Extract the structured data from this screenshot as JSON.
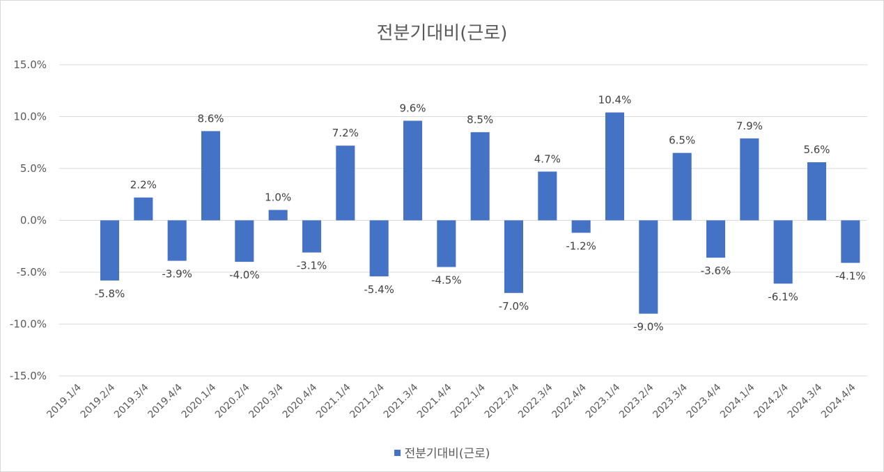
{
  "colors": {
    "bar": "#4472C4"
  },
  "chart_data": {
    "type": "bar",
    "title": "전분기대비(근로)",
    "categories": [
      "2019.1/4",
      "2019.2/4",
      "2019.3/4",
      "2019.4/4",
      "2020.1/4",
      "2020.2/4",
      "2020.3/4",
      "2020.4/4",
      "2021.1/4",
      "2021.2/4",
      "2021.3/4",
      "2021.4/4",
      "2022.1/4",
      "2022.2/4",
      "2022.3/4",
      "2022.4/4",
      "2023.1/4",
      "2023.2/4",
      "2023.3/4",
      "2023.4/4",
      "2024.1/4",
      "2024.2/4",
      "2024.3/4",
      "2024.4/4"
    ],
    "series": [
      {
        "name": "전분기대비(근로)",
        "values": [
          null,
          -5.8,
          2.2,
          -3.9,
          8.6,
          -4.0,
          1.0,
          -3.1,
          7.2,
          -5.4,
          9.6,
          -4.5,
          8.5,
          -7.0,
          4.7,
          -1.2,
          10.4,
          -9.0,
          6.5,
          -3.6,
          7.9,
          -6.1,
          5.6,
          -4.1
        ],
        "labels": [
          "",
          "-5.8%",
          "2.2%",
          "-3.9%",
          "8.6%",
          "-4.0%",
          "1.0%",
          "-3.1%",
          "7.2%",
          "-5.4%",
          "9.6%",
          "-4.5%",
          "8.5%",
          "-7.0%",
          "4.7%",
          "-1.2%",
          "10.4%",
          "-9.0%",
          "6.5%",
          "-3.6%",
          "7.9%",
          "-6.1%",
          "5.6%",
          "-4.1%"
        ]
      }
    ],
    "ylim": [
      -15,
      15
    ],
    "yticks": [
      15,
      10,
      5,
      0,
      -5,
      -10,
      -15
    ],
    "ytick_labels": [
      "15.0%",
      "10.0%",
      "5.0%",
      "0.0%",
      "-5.0%",
      "-10.0%",
      "-15.0%"
    ],
    "grid": true,
    "legend": "bottom"
  }
}
